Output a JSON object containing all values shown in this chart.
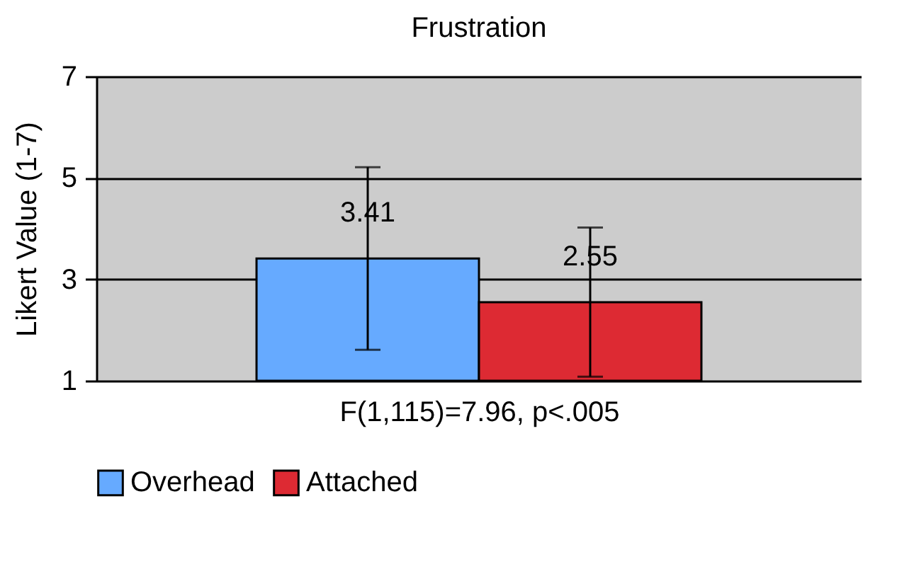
{
  "chart_data": {
    "type": "bar",
    "title": "Frustration",
    "ylabel": "Likert Value (1-7)",
    "xlabel": "F(1,115)=7.96,  p<.005",
    "categories": [
      null
    ],
    "series": [
      {
        "name": "Overhead",
        "color": "#66aaff",
        "values": [
          3.41
        ],
        "errors": [
          1.8
        ]
      },
      {
        "name": "Attached",
        "color": "#dd2a33",
        "values": [
          2.55
        ],
        "errors": [
          1.47
        ]
      }
    ],
    "ylim": [
      1,
      7
    ],
    "yticks": [
      1,
      3,
      5,
      7
    ],
    "grid": "y",
    "legend": "bottom",
    "data_labels": true
  }
}
